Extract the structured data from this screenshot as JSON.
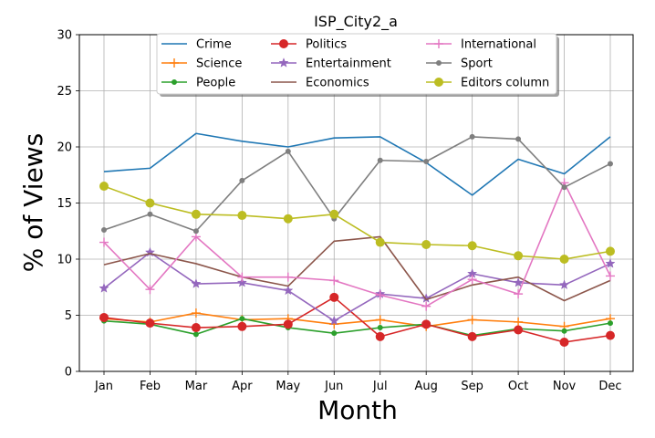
{
  "chart_data": {
    "type": "line",
    "title": "ISP_City2_a",
    "xlabel": "Month",
    "ylabel": "% of Views",
    "ylim": [
      0,
      30
    ],
    "yticks": [
      0,
      5,
      10,
      15,
      20,
      25,
      30
    ],
    "grid": true,
    "legend_position": "top-center",
    "categories": [
      "Jan",
      "Feb",
      "Mar",
      "Apr",
      "May",
      "Jun",
      "Jul",
      "Aug",
      "Sep",
      "Oct",
      "Nov",
      "Dec"
    ],
    "series": [
      {
        "name": "Crime",
        "color": "#1f77b4",
        "marker": "none",
        "values": [
          17.8,
          18.1,
          21.2,
          20.5,
          20.0,
          20.8,
          20.9,
          18.6,
          15.7,
          18.9,
          17.6,
          20.9
        ]
      },
      {
        "name": "Science",
        "color": "#ff7f0e",
        "marker": "plus",
        "values": [
          4.7,
          4.4,
          5.2,
          4.6,
          4.7,
          4.2,
          4.6,
          4.0,
          4.6,
          4.4,
          4.0,
          4.7
        ]
      },
      {
        "name": "People",
        "color": "#2ca02c",
        "marker": "dot",
        "values": [
          4.5,
          4.2,
          3.3,
          4.7,
          3.9,
          3.4,
          3.9,
          4.2,
          3.2,
          3.8,
          3.6,
          4.3
        ]
      },
      {
        "name": "Politics",
        "color": "#d62728",
        "marker": "circle",
        "values": [
          4.8,
          4.3,
          3.9,
          4.0,
          4.2,
          6.6,
          3.1,
          4.2,
          3.1,
          3.7,
          2.6,
          3.2
        ]
      },
      {
        "name": "Entertainment",
        "color": "#9467bd",
        "marker": "star",
        "values": [
          7.4,
          10.6,
          7.8,
          7.9,
          7.2,
          4.5,
          6.9,
          6.5,
          8.7,
          7.9,
          7.7,
          9.6
        ]
      },
      {
        "name": "Economics",
        "color": "#8c564b",
        "marker": "none",
        "values": [
          9.5,
          10.5,
          9.6,
          8.4,
          7.6,
          11.6,
          12.0,
          6.4,
          7.7,
          8.4,
          6.3,
          8.1
        ]
      },
      {
        "name": "International",
        "color": "#e377c2",
        "marker": "plus",
        "values": [
          11.5,
          7.3,
          12.0,
          8.4,
          8.4,
          8.1,
          6.8,
          5.8,
          8.2,
          6.9,
          16.8,
          8.5
        ]
      },
      {
        "name": "Sport",
        "color": "#7f7f7f",
        "marker": "dot",
        "values": [
          12.6,
          14.0,
          12.5,
          17.0,
          19.6,
          13.6,
          18.8,
          18.7,
          20.9,
          20.7,
          16.4,
          18.5
        ]
      },
      {
        "name": "Editors column",
        "color": "#bcbd22",
        "marker": "circle",
        "values": [
          16.5,
          15.0,
          14.0,
          13.9,
          13.6,
          14.0,
          11.5,
          11.3,
          11.2,
          10.3,
          10.0,
          10.7
        ]
      }
    ]
  }
}
